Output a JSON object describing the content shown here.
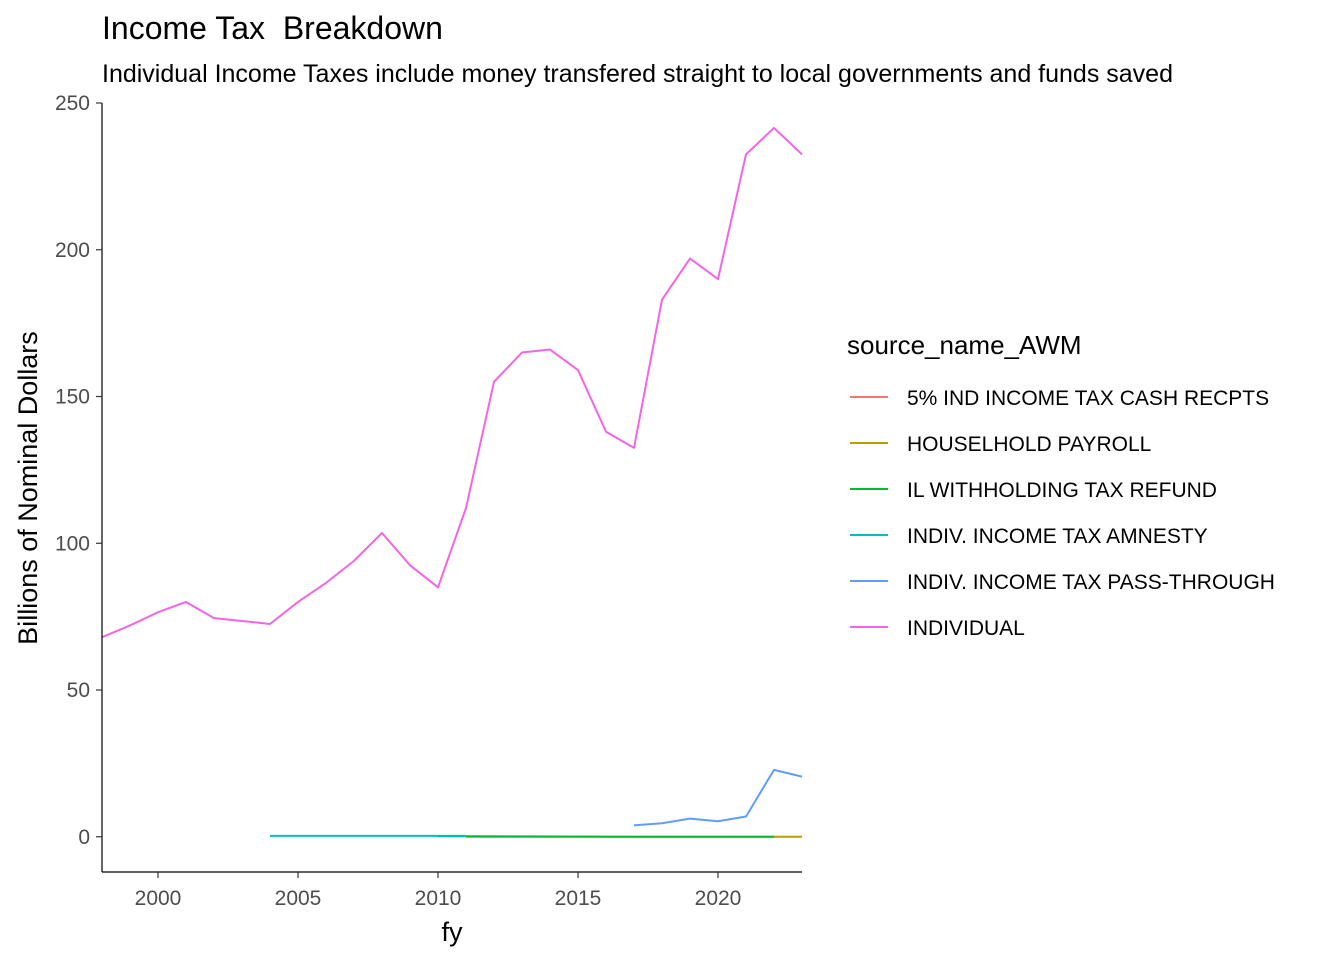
{
  "chart_data": {
    "type": "line",
    "title": "Income Tax  Breakdown",
    "subtitle": "Individual Income Taxes include money transfered straight to local governments and funds saved",
    "xlabel": "fy",
    "ylabel": "Billions of Nominal Dollars",
    "xlim": [
      1998,
      2023
    ],
    "ylim": [
      -12,
      250
    ],
    "xticks": [
      2000,
      2005,
      2010,
      2015,
      2020
    ],
    "yticks": [
      0,
      50,
      100,
      150,
      200,
      250
    ],
    "grid": false,
    "legend": {
      "title": "source_name_AWM",
      "placement": "right"
    },
    "series": [
      {
        "name": "5% IND INCOME TAX CASH RECPTS",
        "color": "#F8766D",
        "points": []
      },
      {
        "name": "HOUSELHOLD PAYROLL",
        "color": "#B79F00",
        "points": [
          [
            2011,
            0
          ],
          [
            2012,
            0
          ],
          [
            2013,
            0
          ],
          [
            2014,
            0
          ],
          [
            2015,
            0
          ],
          [
            2016,
            0
          ],
          [
            2017,
            0
          ],
          [
            2018,
            0
          ],
          [
            2019,
            0
          ],
          [
            2020,
            0
          ],
          [
            2021,
            0
          ],
          [
            2022,
            0
          ],
          [
            2023,
            0
          ]
        ]
      },
      {
        "name": "IL WITHHOLDING TAX REFUND",
        "color": "#00BA38",
        "points": [
          [
            2010,
            0.2
          ],
          [
            2011,
            0.2
          ],
          [
            2018,
            0
          ],
          [
            2019,
            0
          ],
          [
            2020,
            0
          ],
          [
            2021,
            0
          ],
          [
            2022,
            0
          ]
        ]
      },
      {
        "name": "INDIV. INCOME TAX AMNESTY",
        "color": "#00BFC4",
        "points": [
          [
            2004,
            0.3
          ],
          [
            2005,
            0.3
          ],
          [
            2006,
            0.3
          ],
          [
            2007,
            0.3
          ],
          [
            2008,
            0.3
          ],
          [
            2009,
            0.3
          ],
          [
            2010,
            0.3
          ],
          [
            2011,
            0.3
          ]
        ]
      },
      {
        "name": "INDIV. INCOME TAX PASS-THROUGH",
        "color": "#619CFF",
        "points": [
          [
            2017,
            3.9
          ],
          [
            2018,
            4.6
          ],
          [
            2019,
            6.2
          ],
          [
            2020,
            5.3
          ],
          [
            2021,
            6.9
          ],
          [
            2022,
            22.8
          ],
          [
            2023,
            20.5
          ]
        ]
      },
      {
        "name": "INDIVIDUAL",
        "color": "#F564E3",
        "points": [
          [
            1998,
            68
          ],
          [
            1999,
            72
          ],
          [
            2000,
            76.5
          ],
          [
            2001,
            80
          ],
          [
            2002,
            74.5
          ],
          [
            2003,
            73.5
          ],
          [
            2004,
            72.5
          ],
          [
            2005,
            80
          ],
          [
            2006,
            86.5
          ],
          [
            2007,
            94
          ],
          [
            2008,
            103.5
          ],
          [
            2009,
            92.5
          ],
          [
            2010,
            85
          ],
          [
            2011,
            112
          ],
          [
            2012,
            155
          ],
          [
            2013,
            165
          ],
          [
            2014,
            166
          ],
          [
            2015,
            159
          ],
          [
            2016,
            138
          ],
          [
            2017,
            132.5
          ],
          [
            2018,
            183
          ],
          [
            2019,
            197
          ],
          [
            2020,
            190
          ],
          [
            2021,
            232.5
          ],
          [
            2022,
            241.5
          ],
          [
            2023,
            232.5
          ]
        ]
      }
    ]
  }
}
